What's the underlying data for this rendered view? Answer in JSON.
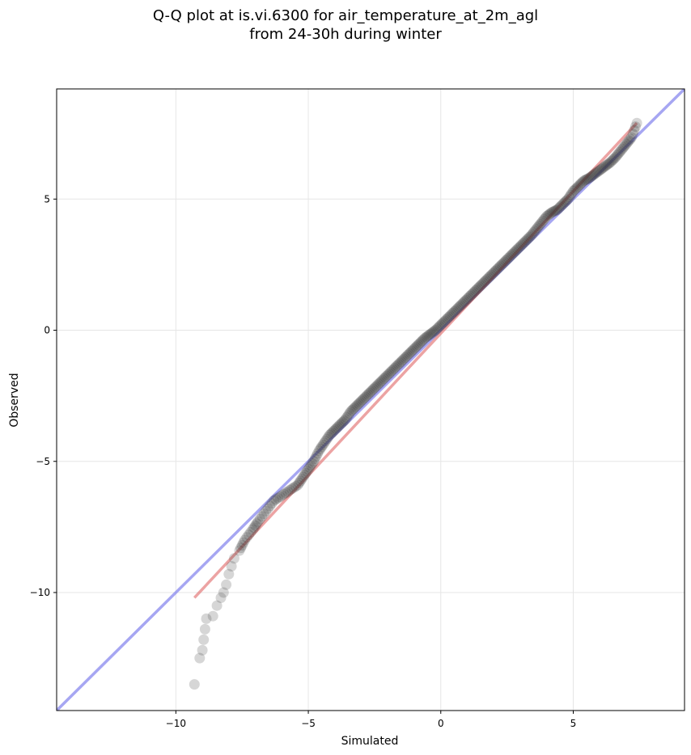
{
  "title_line1": "Q-Q plot at is.vi.6300 for air_temperature_at_2m_agl",
  "title_line2": "from 24-30h during winter",
  "chart_data": {
    "type": "scatter",
    "title": "Q-Q plot at is.vi.6300 for air_temperature_at_2m_agl\nfrom 24-30h during winter",
    "xlabel": "Simulated",
    "ylabel": "Observed",
    "xlim": [
      -14.5,
      9.2
    ],
    "ylim": [
      -14.5,
      9.2
    ],
    "x_ticks": [
      -10,
      -5,
      0,
      5
    ],
    "y_ticks": [
      -10,
      -5,
      0,
      5
    ],
    "x_tick_labels": [
      "−10",
      "−5",
      "0",
      "5"
    ],
    "y_tick_labels": [
      "−10",
      "−5",
      "0",
      "5"
    ],
    "grid": true,
    "colors": {
      "points": "#333333",
      "fit_line": "#e06666",
      "identity_line": "#8888ee",
      "grid": "#e6e6e6"
    },
    "identity_line": {
      "x": [
        -14.5,
        9.2
      ],
      "y": [
        -14.5,
        9.2
      ]
    },
    "fit_line": {
      "x": [
        -9.3,
        7.4
      ],
      "y": [
        -10.2,
        7.9
      ]
    },
    "quantiles": {
      "x": [
        -9.3,
        -9.1,
        -9.0,
        -8.95,
        -8.9,
        -8.85,
        -8.6,
        -8.45,
        -8.3,
        -8.2,
        -8.1,
        -8.0,
        -7.9,
        -7.8,
        -7.6,
        -7.4,
        -7.1,
        -6.9,
        -6.6,
        -6.3,
        -6.0,
        -5.7,
        -5.4,
        -5.2,
        -5.0,
        -4.8,
        -4.6,
        -4.4,
        -4.2,
        -4.0,
        -3.8,
        -3.6,
        -3.4,
        -3.2,
        -3.0,
        -2.8,
        -2.6,
        -2.4,
        -2.2,
        -2.0,
        -1.8,
        -1.6,
        -1.4,
        -1.2,
        -1.0,
        -0.8,
        -0.6,
        -0.4,
        -0.2,
        0.0,
        0.2,
        0.4,
        0.6,
        0.8,
        1.0,
        1.2,
        1.4,
        1.6,
        1.8,
        2.0,
        2.2,
        2.4,
        2.6,
        2.8,
        3.0,
        3.2,
        3.4,
        3.6,
        3.8,
        4.0,
        4.2,
        4.4,
        4.6,
        4.8,
        5.0,
        5.2,
        5.4,
        5.6,
        5.8,
        6.0,
        6.2,
        6.4,
        6.6,
        6.8,
        7.0,
        7.2,
        7.4
      ],
      "y": [
        -13.5,
        -12.5,
        -12.2,
        -11.8,
        -11.4,
        -11.0,
        -10.9,
        -10.5,
        -10.2,
        -10.0,
        -9.7,
        -9.3,
        -9.0,
        -8.7,
        -8.4,
        -8.0,
        -7.6,
        -7.3,
        -6.9,
        -6.5,
        -6.3,
        -6.1,
        -5.9,
        -5.6,
        -5.3,
        -5.0,
        -4.6,
        -4.3,
        -4.0,
        -3.8,
        -3.6,
        -3.4,
        -3.1,
        -2.9,
        -2.7,
        -2.5,
        -2.3,
        -2.1,
        -1.9,
        -1.7,
        -1.5,
        -1.3,
        -1.1,
        -0.9,
        -0.7,
        -0.5,
        -0.3,
        -0.15,
        0.0,
        0.2,
        0.4,
        0.6,
        0.8,
        1.0,
        1.2,
        1.4,
        1.6,
        1.8,
        2.0,
        2.2,
        2.4,
        2.6,
        2.8,
        3.0,
        3.2,
        3.4,
        3.6,
        3.85,
        4.1,
        4.35,
        4.5,
        4.6,
        4.8,
        5.0,
        5.3,
        5.5,
        5.7,
        5.8,
        5.95,
        6.1,
        6.25,
        6.4,
        6.6,
        6.85,
        7.1,
        7.35,
        7.9
      ]
    }
  }
}
